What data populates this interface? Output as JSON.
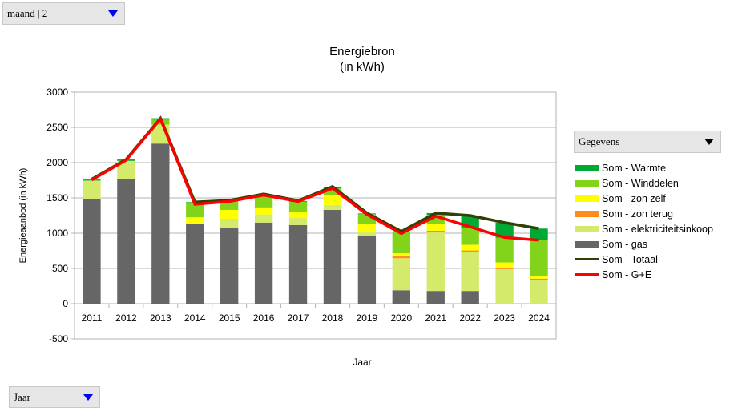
{
  "controls": {
    "top_dropdown": "maand | 2",
    "bottom_dropdown": "Jaar",
    "legend_dropdown": "Gegevens"
  },
  "chart_data": {
    "type": "bar",
    "stacked": true,
    "title": "Energiebron",
    "subtitle": "(in kWh)",
    "xlabel": "Jaar",
    "ylabel": "Energieaanbod (in kWh)",
    "ylim": [
      -500,
      3000
    ],
    "yticks": [
      -500,
      0,
      500,
      1000,
      1500,
      2000,
      2500,
      3000
    ],
    "grid": true,
    "legend_position": "right",
    "categories": [
      "2011",
      "2012",
      "2013",
      "2014",
      "2015",
      "2016",
      "2017",
      "2018",
      "2019",
      "2020",
      "2021",
      "2022",
      "2023",
      "2024"
    ],
    "series": [
      {
        "name": "Som - gas",
        "type": "bar",
        "color": "#666666",
        "values": [
          1490,
          1765,
          2270,
          1125,
          1080,
          1150,
          1115,
          1330,
          955,
          190,
          180,
          180,
          0,
          0
        ]
      },
      {
        "name": "Som - elektriciteitsinkoop",
        "type": "bar",
        "color": "#d4ea6b",
        "values": [
          255,
          260,
          270,
          0,
          125,
          115,
          100,
          70,
          55,
          455,
          830,
          555,
          490,
          340
        ]
      },
      {
        "name": "Som - zon terug",
        "type": "bar",
        "color": "#ff8c1a",
        "values": [
          0,
          0,
          0,
          0,
          0,
          0,
          0,
          0,
          0,
          25,
          25,
          20,
          15,
          15
        ]
      },
      {
        "name": "Som - zon zelf",
        "type": "bar",
        "color": "#ffff00",
        "values": [
          0,
          0,
          0,
          100,
          125,
          100,
          80,
          135,
          125,
          45,
          90,
          80,
          80,
          40
        ]
      },
      {
        "name": "Som - Winddelen",
        "type": "bar",
        "color": "#81d41a",
        "values": [
          0,
          0,
          70,
          200,
          130,
          160,
          150,
          100,
          135,
          310,
          135,
          240,
          350,
          510
        ]
      },
      {
        "name": "Som - Warmte",
        "type": "bar",
        "color": "#00a933",
        "values": [
          15,
          20,
          20,
          15,
          10,
          20,
          10,
          20,
          10,
          0,
          25,
          170,
          215,
          160
        ]
      },
      {
        "name": "Som - Totaal",
        "type": "line",
        "color": "#314004",
        "values": [
          1765,
          2045,
          2630,
          1440,
          1465,
          1555,
          1460,
          1660,
          1285,
          1025,
          1285,
          1250,
          1150,
          1065
        ]
      },
      {
        "name": "Som - G+E",
        "type": "line",
        "color": "#ff0000",
        "values": [
          1755,
          2035,
          2620,
          1410,
          1450,
          1540,
          1450,
          1635,
          1265,
          995,
          1240,
          1090,
          940,
          900
        ]
      }
    ],
    "legend": [
      "Som - Warmte",
      "Som - Winddelen",
      "Som - zon zelf",
      "Som - zon terug",
      "Som - elektriciteitsinkoop",
      "Som - gas",
      "Som - Totaal",
      "Som - G+E"
    ]
  }
}
